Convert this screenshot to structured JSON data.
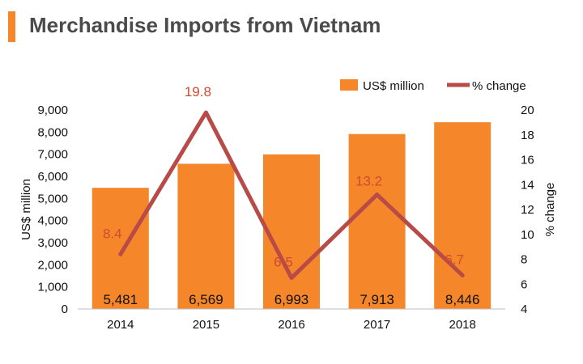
{
  "title": "Merchandise Imports from Vietnam",
  "colors": {
    "bar": "#f5872a",
    "line": "#b84a47",
    "line_label": "#cf4a32",
    "accent": "#f5872a"
  },
  "chart_data": {
    "type": "bar",
    "categories": [
      "2014",
      "2015",
      "2016",
      "2017",
      "2018"
    ],
    "series": [
      {
        "name": "US$ million",
        "type": "bar",
        "axis": "left",
        "values": [
          5481,
          6569,
          6993,
          7913,
          8446
        ],
        "labels": [
          "5,481",
          "6,569",
          "6,993",
          "7,913",
          "8,446"
        ]
      },
      {
        "name": "% change",
        "type": "line",
        "axis": "right",
        "values": [
          8.4,
          19.8,
          6.5,
          13.2,
          6.7
        ],
        "labels": [
          "8.4",
          "19.8",
          "6.5",
          "13.2",
          "6.7"
        ]
      }
    ],
    "ylabel": "US$ million",
    "y2label": "% change",
    "ylim": [
      0,
      9000
    ],
    "y2lim": [
      4,
      20
    ],
    "yticks": [
      "0",
      "1,000",
      "2,000",
      "3,000",
      "4,000",
      "5,000",
      "6,000",
      "7,000",
      "8,000",
      "9,000"
    ],
    "y2ticks": [
      "4",
      "6",
      "8",
      "10",
      "12",
      "14",
      "16",
      "18",
      "20"
    ],
    "legend_position": "top-right",
    "grid": false
  }
}
